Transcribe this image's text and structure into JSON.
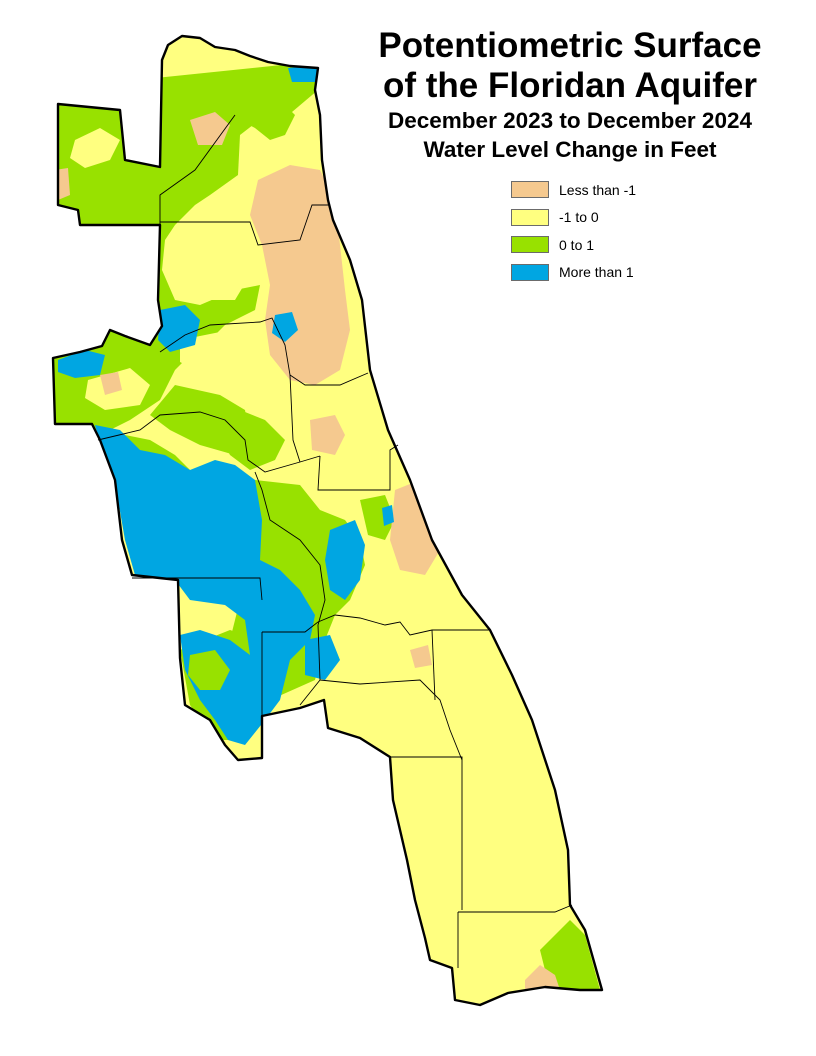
{
  "title": {
    "line1": "Potentiometric Surface",
    "line2": "of the Floridan Aquifer",
    "line3": "December 2023 to December 2024",
    "line4": "Water Level Change in Feet"
  },
  "legend": [
    {
      "label": "Less than -1",
      "color": "#f5c98f"
    },
    {
      "label": "-1 to 0",
      "color": "#ffff80"
    },
    {
      "label": "0 to 1",
      "color": "#98e100"
    },
    {
      "label": "More than 1",
      "color": "#00a6e2"
    }
  ]
}
